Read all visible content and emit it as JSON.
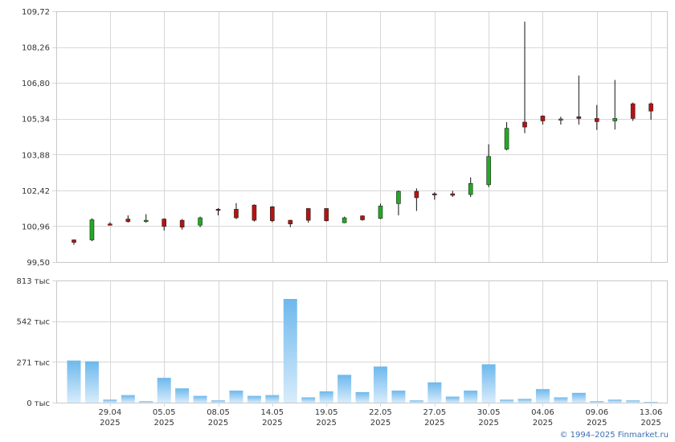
{
  "chart_data": [
    {
      "type": "candlestick",
      "ylim": [
        99.5,
        109.72
      ],
      "y_ticks": [
        "109,72",
        "108,26",
        "106,80",
        "105,34",
        "103,88",
        "102,42",
        "100,96",
        "99,50"
      ],
      "y_tick_values": [
        109.72,
        108.26,
        106.8,
        105.34,
        103.88,
        102.42,
        100.96,
        99.5
      ],
      "grid": true,
      "colors": {
        "up": "#22aa22",
        "down": "#bb1111",
        "wick": "#111111"
      },
      "candles": [
        {
          "o": 100.4,
          "h": 100.42,
          "l": 100.2,
          "c": 100.3
        },
        {
          "o": 100.4,
          "h": 101.28,
          "l": 100.35,
          "c": 101.22
        },
        {
          "o": 101.05,
          "h": 101.12,
          "l": 100.98,
          "c": 101.0
        },
        {
          "o": 101.25,
          "h": 101.4,
          "l": 101.1,
          "c": 101.15
        },
        {
          "o": 101.15,
          "h": 101.45,
          "l": 101.1,
          "c": 101.2
        },
        {
          "o": 101.25,
          "h": 101.28,
          "l": 100.78,
          "c": 100.95
        },
        {
          "o": 101.2,
          "h": 101.25,
          "l": 100.82,
          "c": 100.92
        },
        {
          "o": 101.0,
          "h": 101.35,
          "l": 100.92,
          "c": 101.3
        },
        {
          "o": 101.65,
          "h": 101.7,
          "l": 101.4,
          "c": 101.62
        },
        {
          "o": 101.65,
          "h": 101.9,
          "l": 101.25,
          "c": 101.3
        },
        {
          "o": 101.82,
          "h": 101.85,
          "l": 101.15,
          "c": 101.2
        },
        {
          "o": 101.75,
          "h": 101.78,
          "l": 101.12,
          "c": 101.18
        },
        {
          "o": 101.2,
          "h": 101.22,
          "l": 100.92,
          "c": 101.05
        },
        {
          "o": 101.68,
          "h": 101.7,
          "l": 101.1,
          "c": 101.2
        },
        {
          "o": 101.68,
          "h": 101.7,
          "l": 101.15,
          "c": 101.18
        },
        {
          "o": 101.1,
          "h": 101.35,
          "l": 101.08,
          "c": 101.3
        },
        {
          "o": 101.38,
          "h": 101.4,
          "l": 101.18,
          "c": 101.22
        },
        {
          "o": 101.28,
          "h": 101.88,
          "l": 101.25,
          "c": 101.78
        },
        {
          "o": 101.88,
          "h": 102.42,
          "l": 101.4,
          "c": 102.38
        },
        {
          "o": 102.38,
          "h": 102.5,
          "l": 101.58,
          "c": 102.12
        },
        {
          "o": 102.28,
          "h": 102.34,
          "l": 102.04,
          "c": 102.25
        },
        {
          "o": 102.28,
          "h": 102.4,
          "l": 102.15,
          "c": 102.22
        },
        {
          "o": 102.25,
          "h": 102.95,
          "l": 102.15,
          "c": 102.7
        },
        {
          "o": 102.65,
          "h": 104.3,
          "l": 102.55,
          "c": 103.8
        },
        {
          "o": 104.1,
          "h": 105.2,
          "l": 104.05,
          "c": 104.95
        },
        {
          "o": 105.2,
          "h": 109.3,
          "l": 104.75,
          "c": 105.0
        },
        {
          "o": 105.45,
          "h": 105.48,
          "l": 105.1,
          "c": 105.25
        },
        {
          "o": 105.3,
          "h": 105.42,
          "l": 105.1,
          "c": 105.33
        },
        {
          "o": 105.42,
          "h": 107.1,
          "l": 105.1,
          "c": 105.35
        },
        {
          "o": 105.35,
          "h": 105.9,
          "l": 104.88,
          "c": 105.22
        },
        {
          "o": 105.25,
          "h": 106.92,
          "l": 104.9,
          "c": 105.35
        },
        {
          "o": 105.95,
          "h": 106.0,
          "l": 105.25,
          "c": 105.35
        },
        {
          "o": 105.95,
          "h": 106.0,
          "l": 105.3,
          "c": 105.65
        }
      ]
    },
    {
      "type": "bar",
      "ylim": [
        0,
        813
      ],
      "y_ticks": [
        "813 тыс",
        "542 тыс",
        "271 тыс",
        "0 тыс"
      ],
      "y_tick_values": [
        813,
        542,
        271,
        0
      ],
      "unit": "тыс",
      "grid": true,
      "bar_color_top": "#6db8ec",
      "bar_color_bottom": "#d8ecfb",
      "values": [
        280,
        275,
        20,
        50,
        10,
        165,
        95,
        45,
        15,
        80,
        45,
        50,
        690,
        35,
        75,
        185,
        70,
        240,
        80,
        15,
        135,
        40,
        80,
        255,
        20,
        25,
        90,
        35,
        65,
        10,
        20,
        15,
        5
      ]
    }
  ],
  "x_axis": {
    "labels": [
      {
        "day": "29.04",
        "year": "2025",
        "index": 2
      },
      {
        "day": "05.05",
        "year": "2025",
        "index": 5
      },
      {
        "day": "08.05",
        "year": "2025",
        "index": 8
      },
      {
        "day": "14.05",
        "year": "2025",
        "index": 11
      },
      {
        "day": "19.05",
        "year": "2025",
        "index": 14
      },
      {
        "day": "22.05",
        "year": "2025",
        "index": 17
      },
      {
        "day": "27.05",
        "year": "2025",
        "index": 20
      },
      {
        "day": "30.05",
        "year": "2025",
        "index": 23
      },
      {
        "day": "04.06",
        "year": "2025",
        "index": 26
      },
      {
        "day": "09.06",
        "year": "2025",
        "index": 29
      },
      {
        "day": "13.06",
        "year": "2025",
        "index": 32
      }
    ]
  },
  "footer": {
    "credit": "© 1994–2025 Finmarket.ru"
  }
}
